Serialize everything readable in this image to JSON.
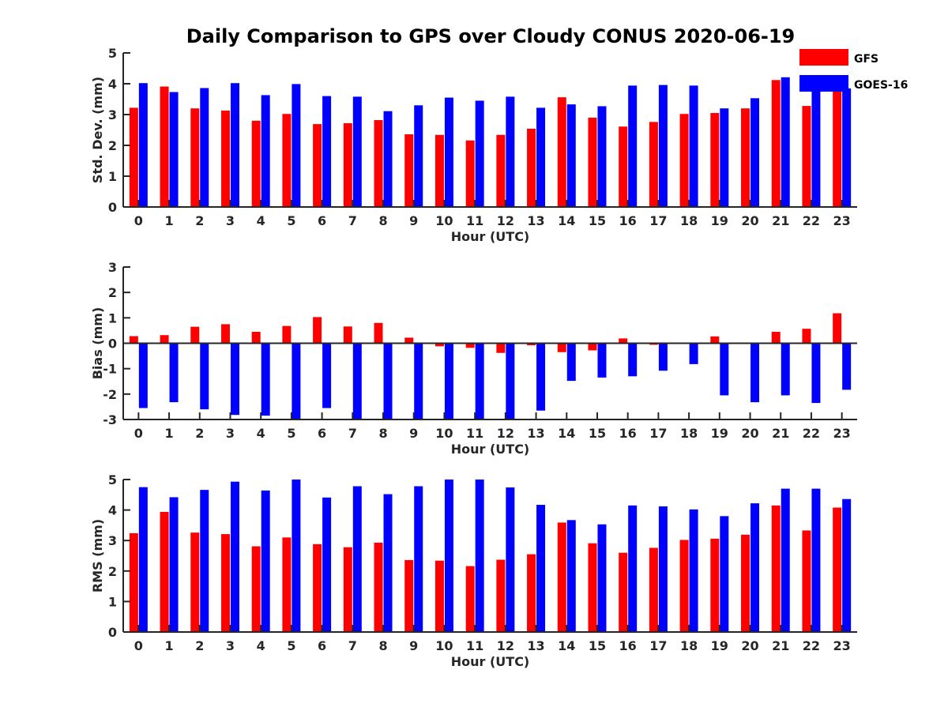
{
  "title": "Daily Comparison to GPS over Cloudy CONUS 2020-06-19",
  "legend": [
    {
      "name": "GFS",
      "color": "#ff0000"
    },
    {
      "name": "GOES-16",
      "color": "#0000ff"
    }
  ],
  "chart_data": [
    {
      "type": "bar",
      "id": "stddev",
      "xlabel": "Hour (UTC)",
      "ylabel": "Std. Dev. (mm)",
      "ylim": [
        0,
        5
      ],
      "yticks": [
        0,
        1,
        2,
        3,
        4,
        5
      ],
      "categories": [
        "0",
        "1",
        "2",
        "3",
        "4",
        "5",
        "6",
        "7",
        "8",
        "9",
        "10",
        "11",
        "12",
        "13",
        "14",
        "15",
        "16",
        "17",
        "18",
        "19",
        "20",
        "21",
        "22",
        "23"
      ],
      "series": [
        {
          "name": "GFS",
          "color": "#ff0000",
          "values": [
            3.22,
            3.91,
            3.2,
            3.13,
            2.8,
            3.02,
            2.69,
            2.72,
            2.82,
            2.36,
            2.34,
            2.16,
            2.34,
            2.54,
            3.56,
            2.9,
            2.61,
            2.76,
            3.02,
            3.05,
            3.2,
            4.12,
            3.28,
            3.9
          ]
        },
        {
          "name": "GOES-16",
          "color": "#0000ff",
          "values": [
            4.02,
            3.73,
            3.86,
            4.02,
            3.63,
            3.99,
            3.6,
            3.58,
            3.11,
            3.3,
            3.55,
            3.45,
            3.58,
            3.22,
            3.33,
            3.27,
            3.94,
            3.96,
            3.94,
            3.2,
            3.53,
            4.21,
            4.1,
            3.85
          ]
        }
      ]
    },
    {
      "type": "bar",
      "id": "bias",
      "xlabel": "Hour (UTC)",
      "ylabel": "Bias (mm)",
      "ylim": [
        -3,
        3
      ],
      "yticks": [
        -3,
        -2,
        -1,
        0,
        1,
        2,
        3
      ],
      "categories": [
        "0",
        "1",
        "2",
        "3",
        "4",
        "5",
        "6",
        "7",
        "8",
        "9",
        "10",
        "11",
        "12",
        "13",
        "14",
        "15",
        "16",
        "17",
        "18",
        "19",
        "20",
        "21",
        "22",
        "23"
      ],
      "series": [
        {
          "name": "GFS",
          "color": "#ff0000",
          "values": [
            0.28,
            0.32,
            0.65,
            0.75,
            0.45,
            0.68,
            1.03,
            0.66,
            0.8,
            0.22,
            -0.12,
            -0.18,
            -0.38,
            -0.08,
            -0.35,
            -0.28,
            0.19,
            -0.06,
            0.0,
            0.27,
            0.0,
            0.45,
            0.57,
            1.18
          ]
        },
        {
          "name": "GOES-16",
          "color": "#0000ff",
          "values": [
            -2.55,
            -2.32,
            -2.6,
            -2.82,
            -2.85,
            -3.0,
            -2.55,
            -3.0,
            -3.0,
            -3.0,
            -3.0,
            -3.0,
            -3.0,
            -2.65,
            -1.48,
            -1.35,
            -1.3,
            -1.08,
            -0.82,
            -2.05,
            -2.32,
            -2.05,
            -2.35,
            -1.83
          ]
        }
      ]
    },
    {
      "type": "bar",
      "id": "rms",
      "xlabel": "Hour (UTC)",
      "ylabel": "RMS (mm)",
      "ylim": [
        0,
        5
      ],
      "yticks": [
        0,
        1,
        2,
        3,
        4,
        5
      ],
      "categories": [
        "0",
        "1",
        "2",
        "3",
        "4",
        "5",
        "6",
        "7",
        "8",
        "9",
        "10",
        "11",
        "12",
        "13",
        "14",
        "15",
        "16",
        "17",
        "18",
        "19",
        "20",
        "21",
        "22",
        "23"
      ],
      "series": [
        {
          "name": "GFS",
          "color": "#ff0000",
          "values": [
            3.24,
            3.94,
            3.26,
            3.21,
            2.81,
            3.1,
            2.88,
            2.78,
            2.93,
            2.36,
            2.34,
            2.16,
            2.37,
            2.55,
            3.59,
            2.91,
            2.6,
            2.76,
            3.02,
            3.06,
            3.19,
            4.15,
            3.33,
            4.08
          ]
        },
        {
          "name": "GOES-16",
          "color": "#0000ff",
          "values": [
            4.75,
            4.42,
            4.66,
            4.93,
            4.64,
            5.0,
            4.41,
            4.78,
            4.52,
            4.78,
            5.0,
            5.0,
            4.74,
            4.17,
            3.67,
            3.53,
            4.15,
            4.12,
            4.02,
            3.8,
            4.22,
            4.7,
            4.7,
            4.36
          ]
        }
      ]
    }
  ]
}
